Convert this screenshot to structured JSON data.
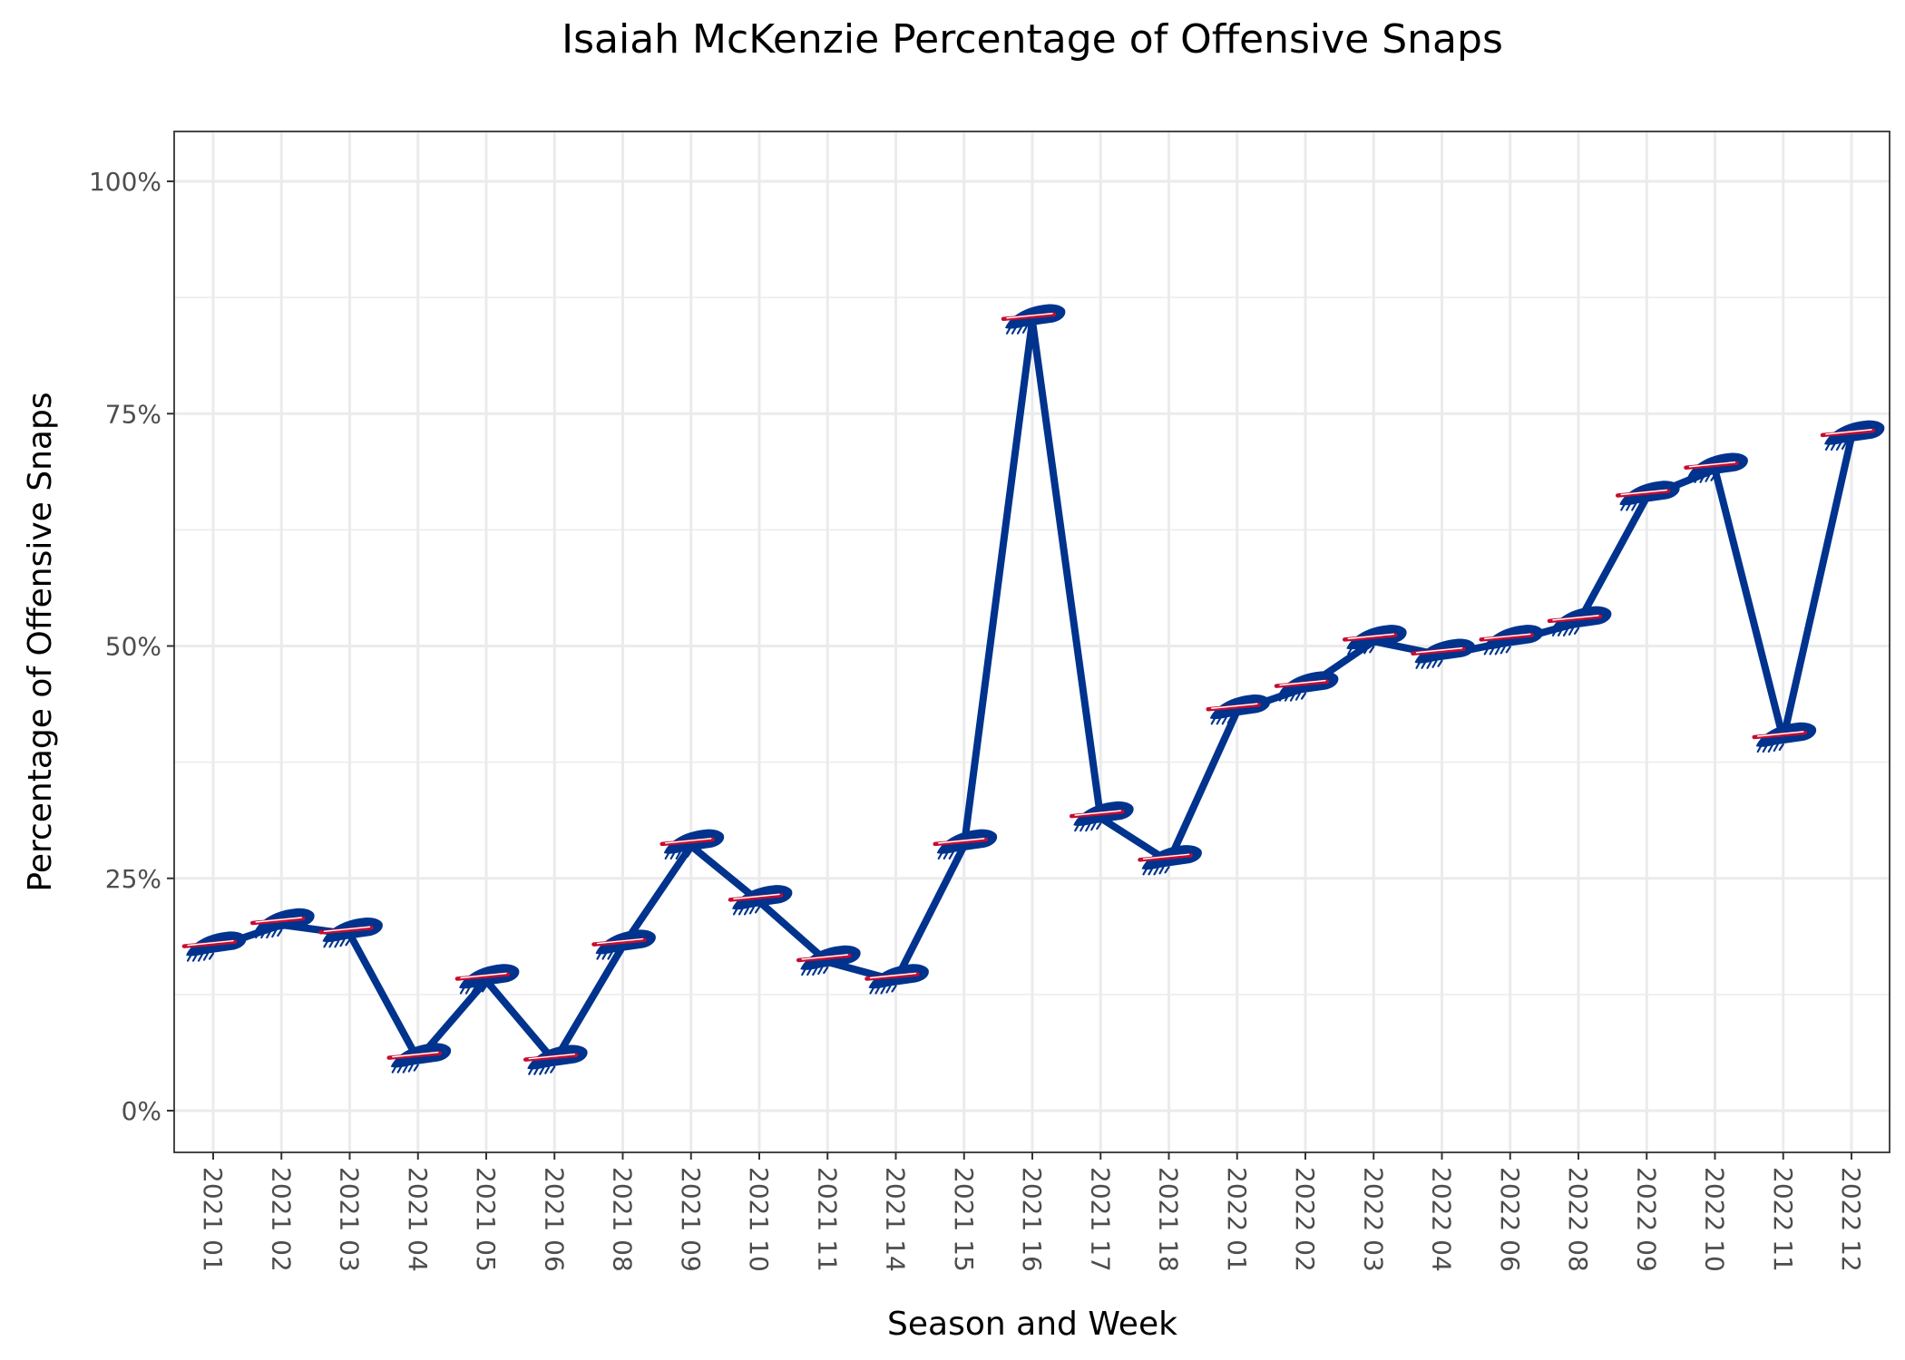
{
  "chart_data": {
    "type": "line",
    "title": "Isaiah McKenzie Percentage of Offensive Snaps",
    "xlabel": "Season and Week",
    "ylabel": "Percentage of Offensive Snaps",
    "ylim": [
      0,
      1
    ],
    "y_ticks": [
      0,
      0.25,
      0.5,
      0.75,
      1.0
    ],
    "y_tick_labels": [
      "0%",
      "25%",
      "50%",
      "75%",
      "100%"
    ],
    "grid": true,
    "line_color": "#00338D",
    "marker": "buffalo-bills-logo-icon",
    "marker_colors": {
      "primary": "#00338D",
      "accent": "#C60C30"
    },
    "categories": [
      "2021 01",
      "2021 02",
      "2021 03",
      "2021 04",
      "2021 05",
      "2021 06",
      "2021 08",
      "2021 09",
      "2021 10",
      "2021 11",
      "2021 14",
      "2021 15",
      "2021 16",
      "2021 17",
      "2021 18",
      "2022 01",
      "2022 02",
      "2022 03",
      "2022 04",
      "2022 06",
      "2022 08",
      "2022 09",
      "2022 10",
      "2022 11",
      "2022 12"
    ],
    "values": [
      0.175,
      0.2,
      0.19,
      0.055,
      0.14,
      0.053,
      0.177,
      0.285,
      0.225,
      0.16,
      0.14,
      0.285,
      0.85,
      0.315,
      0.268,
      0.43,
      0.455,
      0.505,
      0.49,
      0.505,
      0.525,
      0.66,
      0.69,
      0.4,
      0.725
    ]
  }
}
